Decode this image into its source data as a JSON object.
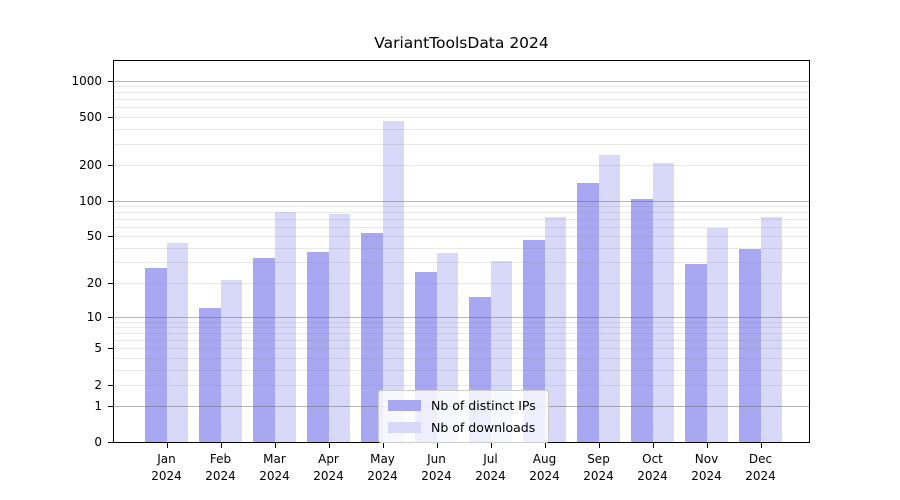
{
  "chart_data": {
    "type": "bar",
    "title": "VariantToolsData 2024",
    "x_tick_year": "2024",
    "categories": [
      "Jan",
      "Feb",
      "Mar",
      "Apr",
      "May",
      "Jun",
      "Jul",
      "Aug",
      "Sep",
      "Oct",
      "Nov",
      "Dec"
    ],
    "series": [
      {
        "name": "Nb of distinct IPs",
        "color": "#a8a8f2",
        "values": [
          27,
          12,
          33,
          37,
          53,
          25,
          15,
          47,
          140,
          104,
          29,
          39
        ]
      },
      {
        "name": "Nb of downloads",
        "color": "#d8d8f8",
        "values": [
          44,
          21,
          80,
          78,
          460,
          36,
          31,
          73,
          240,
          207,
          59,
          73
        ]
      }
    ],
    "y_ticks": [
      0,
      1,
      2,
      5,
      10,
      20,
      50,
      100,
      200,
      500,
      1000
    ],
    "y_scale": "log1p",
    "ylim": [
      0,
      1460
    ],
    "grid": true,
    "legend_position": "lower center",
    "colors": {
      "major_grid": "#b9b9b9",
      "minor_grid": "#e9e9e9",
      "axis": "#000000",
      "legend_border": "#cccccc"
    }
  }
}
